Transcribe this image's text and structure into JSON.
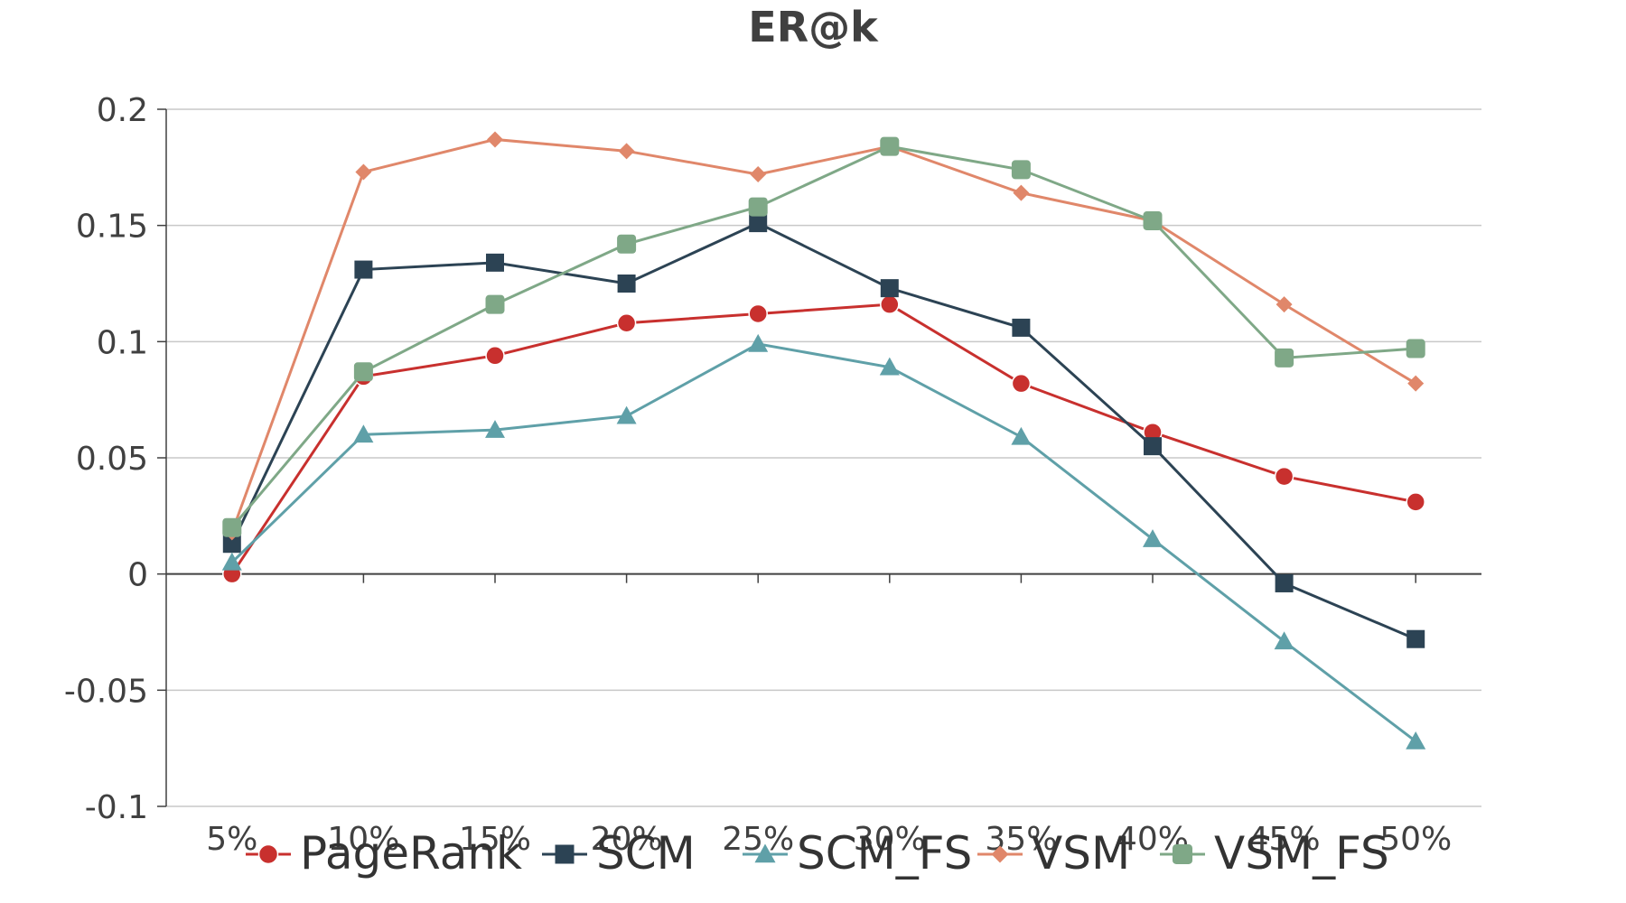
{
  "chart_data": {
    "type": "line",
    "title": "ER@k",
    "xlabel": "",
    "ylabel": "",
    "categories": [
      "5%",
      "10%",
      "15%",
      "20%",
      "25%",
      "30%",
      "35%",
      "40%",
      "45%",
      "50%"
    ],
    "ylim": [
      -0.1,
      0.2
    ],
    "yticks": [
      0.2,
      0.15,
      0.1,
      0.05,
      0,
      -0.05,
      -0.1
    ],
    "ytick_labels": [
      "0.2",
      "0.15",
      "0.1",
      "0.05",
      "0",
      "-0.05",
      "-0.1"
    ],
    "grid": true,
    "legend_position": "bottom",
    "series": [
      {
        "name": "PageRank",
        "color": "#C8302E",
        "marker": "circle",
        "values": [
          0.0,
          0.085,
          0.094,
          0.108,
          0.112,
          0.116,
          0.082,
          0.061,
          0.042,
          0.031
        ]
      },
      {
        "name": "SCM",
        "color": "#2C4354",
        "marker": "square",
        "values": [
          0.013,
          0.131,
          0.134,
          0.125,
          0.151,
          0.123,
          0.106,
          0.055,
          -0.004,
          -0.028
        ]
      },
      {
        "name": "SCM_FS",
        "color": "#5FA0A8",
        "marker": "triangle",
        "values": [
          0.005,
          0.06,
          0.062,
          0.068,
          0.099,
          0.089,
          0.059,
          0.015,
          -0.029,
          -0.072
        ]
      },
      {
        "name": "VSM",
        "color": "#E0876A",
        "marker": "diamond",
        "values": [
          0.018,
          0.173,
          0.187,
          0.182,
          0.172,
          0.184,
          0.164,
          0.152,
          0.116,
          0.082
        ]
      },
      {
        "name": "VSM_FS",
        "color": "#7FA887",
        "marker": "rounded-square",
        "values": [
          0.02,
          0.087,
          0.116,
          0.142,
          0.158,
          0.184,
          0.174,
          0.152,
          0.093,
          0.097
        ]
      }
    ]
  }
}
